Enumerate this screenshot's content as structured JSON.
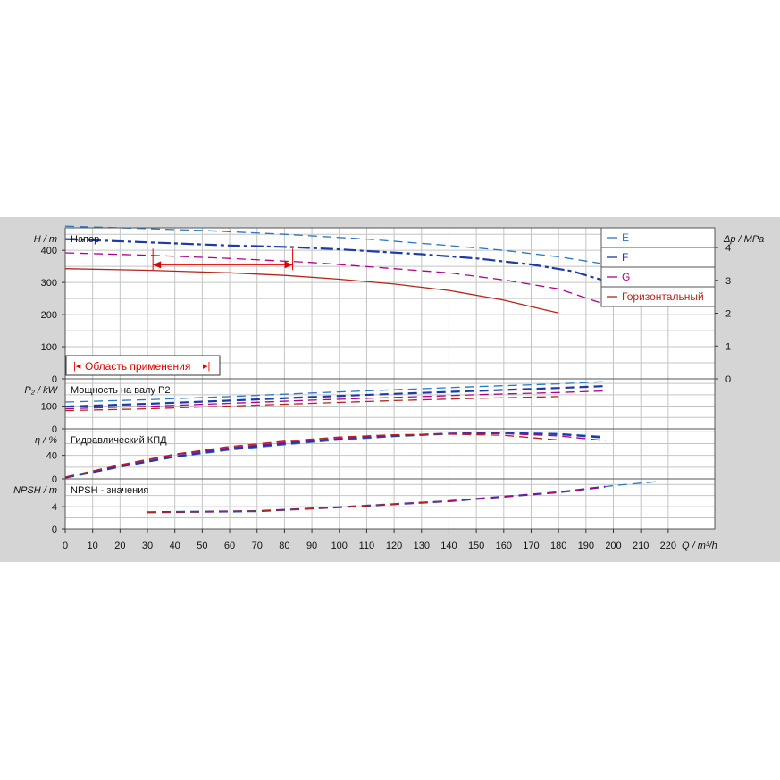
{
  "chart_data": [
    {
      "type": "line",
      "title": "Напор",
      "ylabel_left": "H / m",
      "ylabel_right": "Δp / MPa",
      "ylim": [
        0,
        470
      ],
      "yticks": [
        0,
        100,
        200,
        300,
        400
      ],
      "ylim_right": [
        0,
        4.6
      ],
      "yticks_right": [
        0,
        1,
        2,
        3,
        4
      ],
      "series": [
        {
          "name": "E",
          "color": "#2a77c2",
          "dash": "long",
          "x": [
            0,
            20,
            50,
            80,
            110,
            140,
            160,
            180,
            195
          ],
          "values": [
            475,
            470,
            462,
            450,
            435,
            415,
            400,
            380,
            360
          ]
        },
        {
          "name": "F",
          "color": "#1d3aa8",
          "dash": "mixed",
          "x": [
            0,
            30,
            60,
            83,
            100,
            130,
            150,
            170,
            185,
            197
          ],
          "values": [
            435,
            425,
            415,
            410,
            403,
            388,
            375,
            356,
            335,
            305
          ]
        },
        {
          "name": "G",
          "color": "#b3008a",
          "dash": "long",
          "x": [
            0,
            30,
            60,
            90,
            120,
            140,
            160,
            180,
            197
          ],
          "values": [
            392,
            385,
            375,
            362,
            343,
            330,
            308,
            280,
            232
          ]
        },
        {
          "name": "Горизонтальный",
          "color": "#b5251a",
          "dash": "solid",
          "x": [
            0,
            30,
            60,
            80,
            100,
            120,
            140,
            160,
            175,
            180
          ],
          "values": [
            343,
            338,
            330,
            322,
            310,
            295,
            275,
            245,
            215,
            205
          ]
        }
      ],
      "range": {
        "label": "Область применения",
        "x_start": 32,
        "x_end": 83,
        "y": 355
      }
    },
    {
      "type": "line",
      "title": "Мощность на валу P2",
      "ylabel": "P₂ / kW",
      "ylim": [
        0,
        220
      ],
      "yticks": [
        0,
        100
      ],
      "series": [
        {
          "name": "E",
          "color": "#2a77c2",
          "x": [
            0,
            30,
            60,
            90,
            120,
            150,
            180,
            197
          ],
          "values": [
            118,
            128,
            142,
            158,
            172,
            186,
            198,
            208
          ]
        },
        {
          "name": "F",
          "color": "#1d3aa8",
          "x": [
            0,
            30,
            60,
            90,
            120,
            150,
            180,
            197
          ],
          "values": [
            98,
            110,
            124,
            140,
            154,
            167,
            180,
            188
          ]
        },
        {
          "name": "G",
          "color": "#b3008a",
          "x": [
            0,
            30,
            60,
            90,
            120,
            150,
            180,
            197
          ],
          "values": [
            88,
            99,
            112,
            126,
            138,
            150,
            160,
            167
          ]
        },
        {
          "name": "Горизонтальный",
          "color": "#b5251a",
          "x": [
            0,
            30,
            60,
            90,
            120,
            150,
            180
          ],
          "values": [
            80,
            88,
            100,
            112,
            124,
            134,
            142
          ]
        }
      ]
    },
    {
      "type": "line",
      "title": "Гидравлический КПД",
      "ylabel": "η / %",
      "ylim": [
        0,
        85
      ],
      "yticks": [
        0,
        40
      ],
      "series": [
        {
          "name": "E",
          "color": "#2a77c2",
          "x": [
            0,
            20,
            40,
            60,
            80,
            100,
            120,
            140,
            160,
            180,
            197
          ],
          "values": [
            2,
            20,
            37,
            49,
            58,
            66,
            72,
            76,
            78,
            77,
            72
          ]
        },
        {
          "name": "F",
          "color": "#1d3aa8",
          "x": [
            0,
            20,
            40,
            60,
            80,
            100,
            120,
            140,
            160,
            180,
            197
          ],
          "values": [
            2,
            21,
            38,
            51,
            60,
            68,
            73,
            77,
            78,
            76,
            70
          ]
        },
        {
          "name": "G",
          "color": "#b3008a",
          "x": [
            0,
            20,
            40,
            60,
            80,
            100,
            120,
            140,
            160,
            180,
            197
          ],
          "values": [
            3,
            23,
            41,
            53,
            62,
            69,
            74,
            77,
            77,
            73,
            65
          ]
        },
        {
          "name": "Горизонтальный",
          "color": "#b5251a",
          "x": [
            0,
            20,
            40,
            60,
            80,
            100,
            120,
            140,
            160,
            180
          ],
          "values": [
            3,
            24,
            42,
            55,
            64,
            71,
            75,
            76,
            74,
            66
          ]
        }
      ]
    },
    {
      "type": "line",
      "title": "NPSH - значения",
      "ylabel": "NPSH / m",
      "ylim": [
        0,
        9
      ],
      "yticks": [
        0,
        4
      ],
      "xlabel": "Q / m³/h",
      "xlim": [
        0,
        237
      ],
      "xticks": [
        0,
        10,
        20,
        30,
        40,
        50,
        60,
        70,
        80,
        90,
        100,
        110,
        120,
        130,
        140,
        150,
        160,
        170,
        180,
        190,
        200,
        210,
        220
      ],
      "series": [
        {
          "name": "E",
          "color": "#2a77c2",
          "x": [
            30,
            70,
            100,
            140,
            180,
            200,
            216
          ],
          "values": [
            3.0,
            3.2,
            3.9,
            5.0,
            6.6,
            7.8,
            8.5
          ]
        },
        {
          "name": "F",
          "color": "#1d3aa8",
          "x": [
            30,
            70,
            100,
            140,
            180,
            197
          ],
          "values": [
            3.0,
            3.2,
            3.9,
            5.0,
            6.6,
            7.6
          ]
        },
        {
          "name": "G",
          "color": "#b3008a",
          "x": [
            30,
            70,
            100,
            140,
            180,
            197
          ],
          "values": [
            3.0,
            3.2,
            3.9,
            5.0,
            6.6,
            7.6
          ]
        },
        {
          "name": "Горизонтальный",
          "color": "#b5251a",
          "x": [
            30,
            70,
            100,
            140
          ],
          "values": [
            3.0,
            3.2,
            3.9,
            5.0
          ]
        }
      ]
    }
  ],
  "legend": [
    {
      "label": "E",
      "color": "#2a77c2"
    },
    {
      "label": "F",
      "color": "#1d3aa8"
    },
    {
      "label": "G",
      "color": "#b3008a"
    },
    {
      "label": "Горизонтальный",
      "color": "#b5251a"
    }
  ],
  "colors": {
    "panel": "#d5d5d5",
    "plot": "#ffffff",
    "grid": "#c4c4c4",
    "range": "#e00000"
  }
}
